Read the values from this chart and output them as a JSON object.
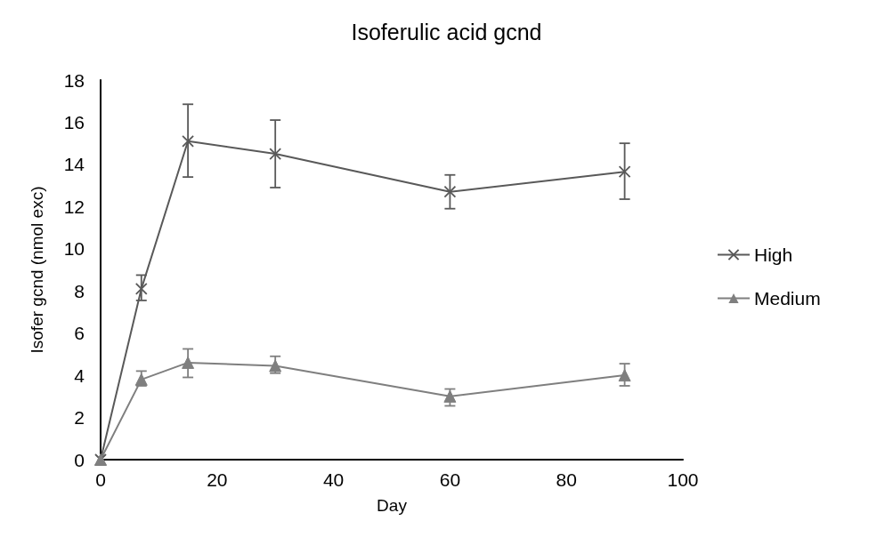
{
  "chart_data": {
    "type": "line",
    "title": "Isoferulic acid gcnd",
    "xlabel": "Day",
    "ylabel": "Isofer gcnd (nmol exc)",
    "xlim": [
      0,
      100
    ],
    "xticks": [
      0,
      20,
      40,
      60,
      80,
      100
    ],
    "ylim": [
      0,
      18
    ],
    "yticks": [
      0,
      2,
      4,
      6,
      8,
      10,
      12,
      14,
      16,
      18
    ],
    "grid": false,
    "legend": "right",
    "x": [
      0,
      7,
      15,
      30,
      60,
      90
    ],
    "series": [
      {
        "name": "High",
        "color": "#595959",
        "marker": "cross",
        "values": [
          0,
          8.1,
          15.1,
          14.5,
          12.7,
          13.65
        ],
        "errors": [
          null,
          [
            7.55,
            8.75
          ],
          [
            13.4,
            16.85
          ],
          [
            12.9,
            16.1
          ],
          [
            11.9,
            13.5
          ],
          [
            12.35,
            15.0
          ]
        ]
      },
      {
        "name": "Medium",
        "color": "#7f7f7f",
        "marker": "triangle",
        "values": [
          0,
          3.8,
          4.6,
          4.45,
          3.0,
          4.0
        ],
        "errors": [
          null,
          [
            3.5,
            4.2
          ],
          [
            3.9,
            5.25
          ],
          [
            4.1,
            4.9
          ],
          [
            2.55,
            3.35
          ],
          [
            3.5,
            4.55
          ]
        ]
      }
    ]
  }
}
